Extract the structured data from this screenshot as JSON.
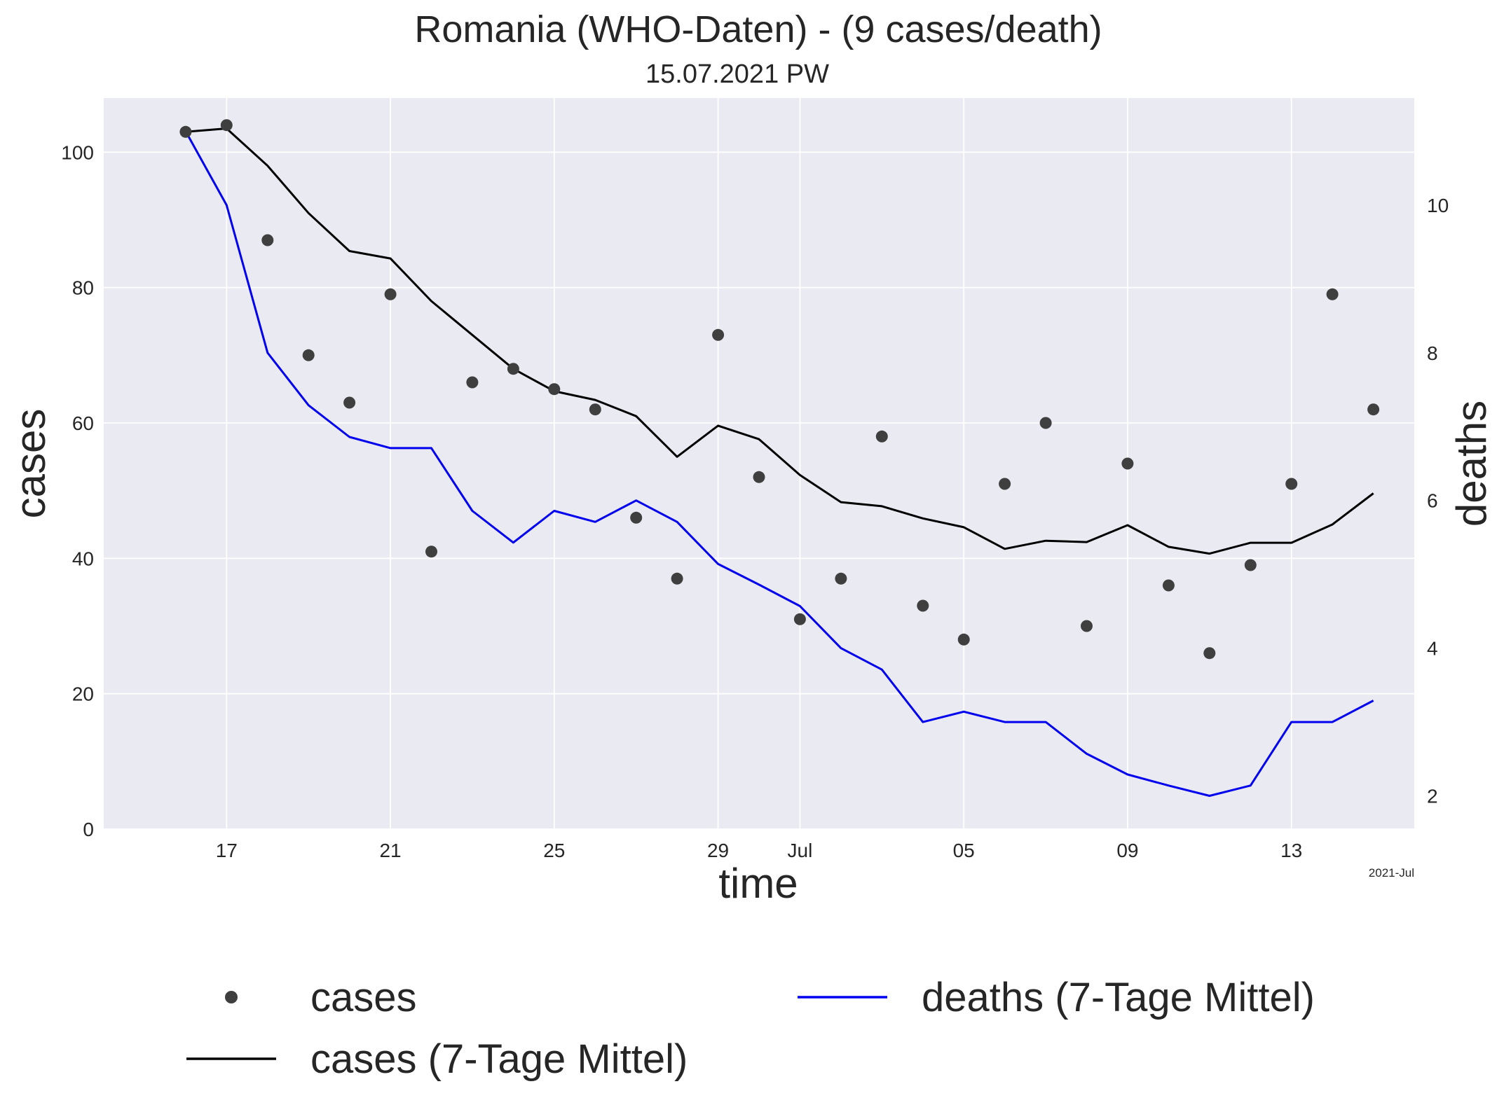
{
  "chart_data": {
    "type": "line",
    "title": "Romania (WHO-Daten) - (9 cases/death)",
    "subtitle": "15.07.2021 PW",
    "xlabel": "time",
    "ylabel": "cases",
    "ylabel_right": "deaths",
    "x_start": "2021-06-16",
    "x_range": [
      "2021-06-14",
      "2021-07-16"
    ],
    "x_tick_labels": [
      {
        "date": "2021-06-17",
        "label": "17"
      },
      {
        "date": "2021-06-21",
        "label": "21"
      },
      {
        "date": "2021-06-25",
        "label": "25"
      },
      {
        "date": "2021-06-29",
        "label": "29"
      },
      {
        "date": "2021-07-01",
        "label": "Jul"
      },
      {
        "date": "2021-07-05",
        "label": "05"
      },
      {
        "date": "2021-07-09",
        "label": "09"
      },
      {
        "date": "2021-07-13",
        "label": "13"
      }
    ],
    "x_offset_label": "2021-Jul",
    "ylim_left": [
      0,
      108
    ],
    "yticks_left": [
      0,
      20,
      40,
      60,
      80,
      100
    ],
    "ylim_right": [
      1.55,
      11.45
    ],
    "yticks_right": [
      2,
      4,
      6,
      8,
      10
    ],
    "grid": true,
    "legend_position": "bottom",
    "colors": {
      "background": "#eaeaf2",
      "cases": "#3f3f3f",
      "cases_avg": "#000000",
      "deaths_avg": "#0000ee",
      "right_label": "#0000ee",
      "grid": "#ffffff"
    },
    "series": [
      {
        "name": "cases",
        "style": "scatter",
        "axis": "left",
        "values": [
          103,
          104,
          87,
          70,
          63,
          79,
          41,
          66,
          68,
          65,
          62,
          46,
          37,
          73,
          52,
          31,
          37,
          58,
          33,
          28,
          51,
          60,
          30,
          54,
          36,
          26,
          39,
          51,
          79,
          62
        ]
      },
      {
        "name": "cases (7-Tage Mittel)",
        "style": "line",
        "axis": "left",
        "values": [
          103,
          103.5,
          98,
          91,
          85.4,
          84.3,
          78,
          73,
          68,
          64.7,
          63.4,
          61,
          55,
          59.6,
          57.6,
          52.3,
          48.3,
          47.7,
          45.9,
          44.6,
          41.4,
          42.6,
          42.4,
          44.9,
          41.7,
          40.7,
          42.3,
          42.3,
          45,
          49.6
        ]
      },
      {
        "name": "deaths (7-Tage Mittel)",
        "style": "line",
        "axis": "right",
        "values": [
          11,
          10,
          8,
          7.29,
          6.86,
          6.71,
          6.71,
          5.86,
          5.43,
          5.86,
          5.71,
          6,
          5.71,
          5.14,
          4.86,
          4.57,
          4,
          3.71,
          3,
          3.14,
          3,
          3,
          2.57,
          2.29,
          2.14,
          2,
          2.14,
          3,
          3,
          3.29
        ]
      }
    ]
  }
}
